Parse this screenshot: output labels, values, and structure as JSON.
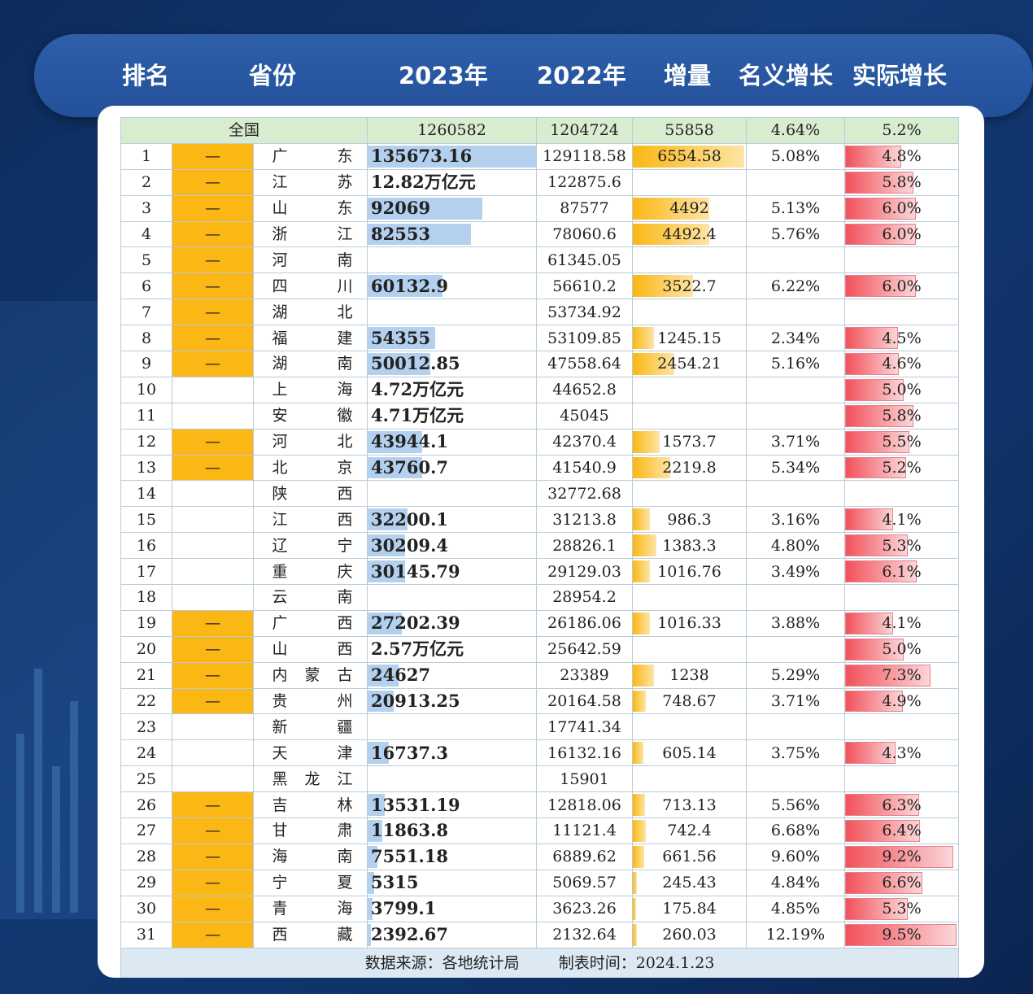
{
  "header": {
    "rank": "排名",
    "province": "省份",
    "y2023": "2023年",
    "y2022": "2022年",
    "increase": "增量",
    "nominal": "名义增长",
    "real": "实际增长"
  },
  "total": {
    "label": "全国",
    "y2023": "1260582",
    "y2022": "1204724",
    "increase": "55858",
    "nominal": "4.64%",
    "real": "5.2%"
  },
  "rows": [
    {
      "rank": "1",
      "mark": "—",
      "prov": [
        "广",
        "",
        "东"
      ],
      "y2023": "135673.16",
      "y2023_val": 135673.16,
      "y2022": "129118.58",
      "inc": "6554.58",
      "inc_val": 6554.58,
      "nom": "5.08%",
      "real": "4.8%",
      "real_val": 4.8
    },
    {
      "rank": "2",
      "mark": "—",
      "prov": [
        "江",
        "",
        "苏"
      ],
      "y2023": "12.82万亿元",
      "y2023_val": 0,
      "y2022": "122875.6",
      "inc": "",
      "inc_val": 0,
      "nom": "",
      "real": "5.8%",
      "real_val": 5.8
    },
    {
      "rank": "3",
      "mark": "—",
      "prov": [
        "山",
        "",
        "东"
      ],
      "y2023": "92069",
      "y2023_val": 92069,
      "y2022": "87577",
      "inc": "4492",
      "inc_val": 4492,
      "nom": "5.13%",
      "real": "6.0%",
      "real_val": 6.0
    },
    {
      "rank": "4",
      "mark": "—",
      "prov": [
        "浙",
        "",
        "江"
      ],
      "y2023": "82553",
      "y2023_val": 82553,
      "y2022": "78060.6",
      "inc": "4492.4",
      "inc_val": 4492.4,
      "nom": "5.76%",
      "real": "6.0%",
      "real_val": 6.0
    },
    {
      "rank": "5",
      "mark": "—",
      "prov": [
        "河",
        "",
        "南"
      ],
      "y2023": "",
      "y2023_val": 0,
      "y2022": "61345.05",
      "inc": "",
      "inc_val": 0,
      "nom": "",
      "real": "",
      "real_val": 0
    },
    {
      "rank": "6",
      "mark": "—",
      "prov": [
        "四",
        "",
        "川"
      ],
      "y2023": "60132.9",
      "y2023_val": 60132.9,
      "y2022": "56610.2",
      "inc": "3522.7",
      "inc_val": 3522.7,
      "nom": "6.22%",
      "real": "6.0%",
      "real_val": 6.0
    },
    {
      "rank": "7",
      "mark": "—",
      "prov": [
        "湖",
        "",
        "北"
      ],
      "y2023": "",
      "y2023_val": 0,
      "y2022": "53734.92",
      "inc": "",
      "inc_val": 0,
      "nom": "",
      "real": "",
      "real_val": 0
    },
    {
      "rank": "8",
      "mark": "—",
      "prov": [
        "福",
        "",
        "建"
      ],
      "y2023": "54355",
      "y2023_val": 54355,
      "y2022": "53109.85",
      "inc": "1245.15",
      "inc_val": 1245.15,
      "nom": "2.34%",
      "real": "4.5%",
      "real_val": 4.5
    },
    {
      "rank": "9",
      "mark": "—",
      "prov": [
        "湖",
        "",
        "南"
      ],
      "y2023": "50012.85",
      "y2023_val": 50012.85,
      "y2022": "47558.64",
      "inc": "2454.21",
      "inc_val": 2454.21,
      "nom": "5.16%",
      "real": "4.6%",
      "real_val": 4.6
    },
    {
      "rank": "10",
      "mark": "",
      "prov": [
        "上",
        "",
        "海"
      ],
      "y2023": "4.72万亿元",
      "y2023_val": 0,
      "y2022": "44652.8",
      "inc": "",
      "inc_val": 0,
      "nom": "",
      "real": "5.0%",
      "real_val": 5.0
    },
    {
      "rank": "11",
      "mark": "",
      "prov": [
        "安",
        "",
        "徽"
      ],
      "y2023": "4.71万亿元",
      "y2023_val": 0,
      "y2022": "45045",
      "inc": "",
      "inc_val": 0,
      "nom": "",
      "real": "5.8%",
      "real_val": 5.8
    },
    {
      "rank": "12",
      "mark": "—",
      "prov": [
        "河",
        "",
        "北"
      ],
      "y2023": "43944.1",
      "y2023_val": 43944.1,
      "y2022": "42370.4",
      "inc": "1573.7",
      "inc_val": 1573.7,
      "nom": "3.71%",
      "real": "5.5%",
      "real_val": 5.5
    },
    {
      "rank": "13",
      "mark": "—",
      "prov": [
        "北",
        "",
        "京"
      ],
      "y2023": "43760.7",
      "y2023_val": 43760.7,
      "y2022": "41540.9",
      "inc": "2219.8",
      "inc_val": 2219.8,
      "nom": "5.34%",
      "real": "5.2%",
      "real_val": 5.2
    },
    {
      "rank": "14",
      "mark": "",
      "prov": [
        "陕",
        "",
        "西"
      ],
      "y2023": "",
      "y2023_val": 0,
      "y2022": "32772.68",
      "inc": "",
      "inc_val": 0,
      "nom": "",
      "real": "",
      "real_val": 0
    },
    {
      "rank": "15",
      "mark": "",
      "prov": [
        "江",
        "",
        "西"
      ],
      "y2023": "32200.1",
      "y2023_val": 32200.1,
      "y2022": "31213.8",
      "inc": "986.3",
      "inc_val": 986.3,
      "nom": "3.16%",
      "real": "4.1%",
      "real_val": 4.1
    },
    {
      "rank": "16",
      "mark": "",
      "prov": [
        "辽",
        "",
        "宁"
      ],
      "y2023": "30209.4",
      "y2023_val": 30209.4,
      "y2022": "28826.1",
      "inc": "1383.3",
      "inc_val": 1383.3,
      "nom": "4.80%",
      "real": "5.3%",
      "real_val": 5.3
    },
    {
      "rank": "17",
      "mark": "",
      "prov": [
        "重",
        "",
        "庆"
      ],
      "y2023": "30145.79",
      "y2023_val": 30145.79,
      "y2022": "29129.03",
      "inc": "1016.76",
      "inc_val": 1016.76,
      "nom": "3.49%",
      "real": "6.1%",
      "real_val": 6.1
    },
    {
      "rank": "18",
      "mark": "",
      "prov": [
        "云",
        "",
        "南"
      ],
      "y2023": "",
      "y2023_val": 0,
      "y2022": "28954.2",
      "inc": "",
      "inc_val": 0,
      "nom": "",
      "real": "",
      "real_val": 0
    },
    {
      "rank": "19",
      "mark": "—",
      "prov": [
        "广",
        "",
        "西"
      ],
      "y2023": "27202.39",
      "y2023_val": 27202.39,
      "y2022": "26186.06",
      "inc": "1016.33",
      "inc_val": 1016.33,
      "nom": "3.88%",
      "real": "4.1%",
      "real_val": 4.1
    },
    {
      "rank": "20",
      "mark": "—",
      "prov": [
        "山",
        "",
        "西"
      ],
      "y2023": "2.57万亿元",
      "y2023_val": 0,
      "y2022": "25642.59",
      "inc": "",
      "inc_val": 0,
      "nom": "",
      "real": "5.0%",
      "real_val": 5.0
    },
    {
      "rank": "21",
      "mark": "—",
      "prov": [
        "内",
        "蒙",
        "古"
      ],
      "y2023": "24627",
      "y2023_val": 24627,
      "y2022": "23389",
      "inc": "1238",
      "inc_val": 1238,
      "nom": "5.29%",
      "real": "7.3%",
      "real_val": 7.3
    },
    {
      "rank": "22",
      "mark": "—",
      "prov": [
        "贵",
        "",
        "州"
      ],
      "y2023": "20913.25",
      "y2023_val": 20913.25,
      "y2022": "20164.58",
      "inc": "748.67",
      "inc_val": 748.67,
      "nom": "3.71%",
      "real": "4.9%",
      "real_val": 4.9
    },
    {
      "rank": "23",
      "mark": "",
      "prov": [
        "新",
        "",
        "疆"
      ],
      "y2023": "",
      "y2023_val": 0,
      "y2022": "17741.34",
      "inc": "",
      "inc_val": 0,
      "nom": "",
      "real": "",
      "real_val": 0
    },
    {
      "rank": "24",
      "mark": "",
      "prov": [
        "天",
        "",
        "津"
      ],
      "y2023": "16737.3",
      "y2023_val": 16737.3,
      "y2022": "16132.16",
      "inc": "605.14",
      "inc_val": 605.14,
      "nom": "3.75%",
      "real": "4.3%",
      "real_val": 4.3
    },
    {
      "rank": "25",
      "mark": "",
      "prov": [
        "黑",
        "龙",
        "江"
      ],
      "y2023": "",
      "y2023_val": 0,
      "y2022": "15901",
      "inc": "",
      "inc_val": 0,
      "nom": "",
      "real": "",
      "real_val": 0
    },
    {
      "rank": "26",
      "mark": "—",
      "prov": [
        "吉",
        "",
        "林"
      ],
      "y2023": "13531.19",
      "y2023_val": 13531.19,
      "y2022": "12818.06",
      "inc": "713.13",
      "inc_val": 713.13,
      "nom": "5.56%",
      "real": "6.3%",
      "real_val": 6.3
    },
    {
      "rank": "27",
      "mark": "—",
      "prov": [
        "甘",
        "",
        "肃"
      ],
      "y2023": "11863.8",
      "y2023_val": 11863.8,
      "y2022": "11121.4",
      "inc": "742.4",
      "inc_val": 742.4,
      "nom": "6.68%",
      "real": "6.4%",
      "real_val": 6.4
    },
    {
      "rank": "28",
      "mark": "—",
      "prov": [
        "海",
        "",
        "南"
      ],
      "y2023": "7551.18",
      "y2023_val": 7551.18,
      "y2022": "6889.62",
      "inc": "661.56",
      "inc_val": 661.56,
      "nom": "9.60%",
      "real": "9.2%",
      "real_val": 9.2
    },
    {
      "rank": "29",
      "mark": "—",
      "prov": [
        "宁",
        "",
        "夏"
      ],
      "y2023": "5315",
      "y2023_val": 5315,
      "y2022": "5069.57",
      "inc": "245.43",
      "inc_val": 245.43,
      "nom": "4.84%",
      "real": "6.6%",
      "real_val": 6.6
    },
    {
      "rank": "30",
      "mark": "—",
      "prov": [
        "青",
        "",
        "海"
      ],
      "y2023": "3799.1",
      "y2023_val": 3799.1,
      "y2022": "3623.26",
      "inc": "175.84",
      "inc_val": 175.84,
      "nom": "4.85%",
      "real": "5.3%",
      "real_val": 5.3
    },
    {
      "rank": "31",
      "mark": "—",
      "prov": [
        "西",
        "",
        "藏"
      ],
      "y2023": "2392.67",
      "y2023_val": 2392.67,
      "y2022": "2132.64",
      "inc": "260.03",
      "inc_val": 260.03,
      "nom": "12.19%",
      "real": "9.5%",
      "real_val": 9.5
    }
  ],
  "footer": {
    "source": "数据来源：各地统计局",
    "date": "制表时间：2024.1.23"
  },
  "colors": {
    "mark": "#fbb714",
    "gdp_bar": "#b4d0ef",
    "inc_bar": "#fbb714",
    "real_bar": "#f2515a"
  }
}
